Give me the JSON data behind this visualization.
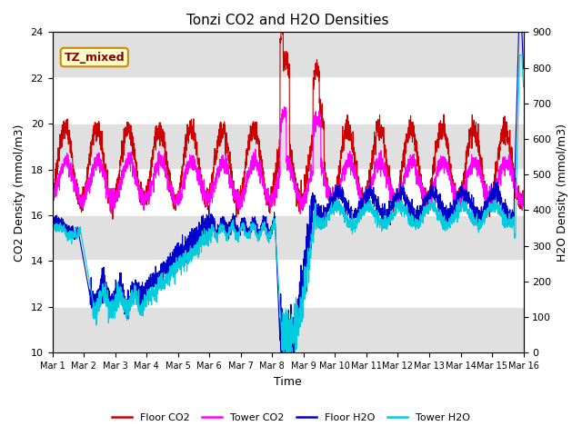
{
  "title": "Tonzi CO2 and H2O Densities",
  "xlabel": "Time",
  "ylabel_left": "CO2 Density (mmol/m3)",
  "ylabel_right": "H2O Density (mmol/m3)",
  "annotation": "TZ_mixed",
  "annotation_bbox": {
    "facecolor": "#ffffcc",
    "edgecolor": "#cc8800",
    "linewidth": 1.5
  },
  "ylim_left": [
    10,
    24
  ],
  "ylim_right": [
    0,
    900
  ],
  "yticks_left": [
    10,
    12,
    14,
    16,
    18,
    20,
    22,
    24
  ],
  "yticks_right": [
    0,
    100,
    200,
    300,
    400,
    500,
    600,
    700,
    800,
    900
  ],
  "x_tick_labels": [
    "Mar 1",
    "Mar 2",
    "Mar 3",
    "Mar 4",
    "Mar 5",
    "Mar 6",
    "Mar 7",
    "Mar 8",
    "Mar 9",
    "Mar 10",
    "Mar 11",
    "Mar 12",
    "Mar 13",
    "Mar 14",
    "Mar 15",
    "Mar 16"
  ],
  "colors": {
    "floor_co2": "#cc0000",
    "tower_co2": "#ff00ff",
    "floor_h2o": "#0000cc",
    "tower_h2o": "#00ccdd"
  },
  "legend_labels": [
    "Floor CO2",
    "Tower CO2",
    "Floor H2O",
    "Tower H2O"
  ],
  "bg_color": "white",
  "plot_bg_color": "white",
  "band_color": "#e0e0e0",
  "n_points": 3000,
  "days": 15,
  "seed": 7
}
